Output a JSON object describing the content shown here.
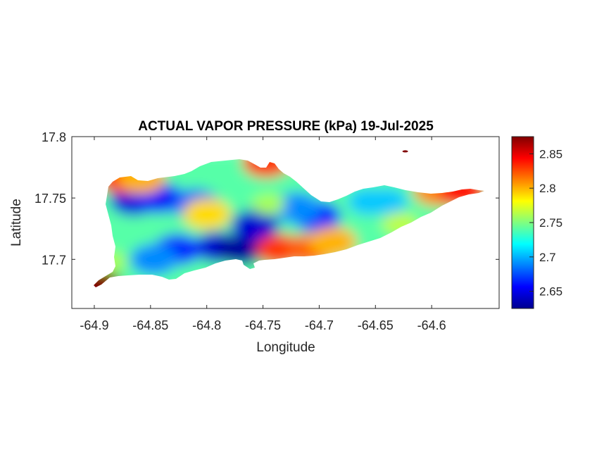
{
  "chart_data": {
    "type": "heatmap",
    "title": "ACTUAL VAPOR PRESSURE (kPa) 19-Jul-2025",
    "xlabel": "Longitude",
    "ylabel": "Latitude",
    "xlim": [
      -64.92,
      -64.54
    ],
    "ylim": [
      17.66,
      17.8
    ],
    "x_ticks": [
      -64.9,
      -64.85,
      -64.8,
      -64.75,
      -64.7,
      -64.65,
      -64.6
    ],
    "x_tick_labels": [
      "-64.9",
      "-64.85",
      "-64.8",
      "-64.75",
      "-64.7",
      "-64.65",
      "-64.6"
    ],
    "y_ticks": [
      17.8,
      17.75,
      17.7
    ],
    "y_tick_labels": [
      "17.8",
      "17.75",
      "17.7"
    ],
    "colorbar": {
      "colormap": "jet",
      "clim": [
        2.625,
        2.875
      ],
      "ticks": [
        2.65,
        2.7,
        2.75,
        2.8,
        2.85
      ],
      "tick_labels": [
        "2.65",
        "2.7",
        "2.75",
        "2.8",
        "2.85"
      ]
    },
    "background_level": 2.74,
    "field_samples": [
      {
        "lon": -64.865,
        "lat": 17.748,
        "value": 2.648
      },
      {
        "lon": -64.842,
        "lat": 17.75,
        "value": 2.655
      },
      {
        "lon": -64.81,
        "lat": 17.745,
        "value": 2.68
      },
      {
        "lon": -64.79,
        "lat": 17.71,
        "value": 2.645
      },
      {
        "lon": -64.77,
        "lat": 17.708,
        "value": 2.632
      },
      {
        "lon": -64.757,
        "lat": 17.728,
        "value": 2.645
      },
      {
        "lon": -64.826,
        "lat": 17.708,
        "value": 2.665
      },
      {
        "lon": -64.847,
        "lat": 17.7,
        "value": 2.69
      },
      {
        "lon": -64.702,
        "lat": 17.735,
        "value": 2.665
      },
      {
        "lon": -64.72,
        "lat": 17.742,
        "value": 2.69
      },
      {
        "lon": -64.656,
        "lat": 17.747,
        "value": 2.705
      },
      {
        "lon": -64.64,
        "lat": 17.747,
        "value": 2.705
      },
      {
        "lon": -64.8,
        "lat": 17.737,
        "value": 2.79
      },
      {
        "lon": -64.745,
        "lat": 17.745,
        "value": 2.76
      },
      {
        "lon": -64.875,
        "lat": 17.766,
        "value": 2.835
      },
      {
        "lon": -64.858,
        "lat": 17.766,
        "value": 2.8
      },
      {
        "lon": -64.747,
        "lat": 17.779,
        "value": 2.83
      },
      {
        "lon": -64.735,
        "lat": 17.708,
        "value": 2.83
      },
      {
        "lon": -64.708,
        "lat": 17.708,
        "value": 2.82
      },
      {
        "lon": -64.688,
        "lat": 17.714,
        "value": 2.8
      },
      {
        "lon": -64.595,
        "lat": 17.756,
        "value": 2.81
      },
      {
        "lon": -64.573,
        "lat": 17.755,
        "value": 2.84
      },
      {
        "lon": -64.898,
        "lat": 17.68,
        "value": 2.875
      },
      {
        "lon": -64.886,
        "lat": 17.698,
        "value": 2.76
      },
      {
        "lon": -64.628,
        "lat": 17.729,
        "value": 2.765
      }
    ],
    "islets": [
      {
        "lon": -64.6235,
        "lat": 17.788,
        "value": 2.875
      }
    ]
  }
}
